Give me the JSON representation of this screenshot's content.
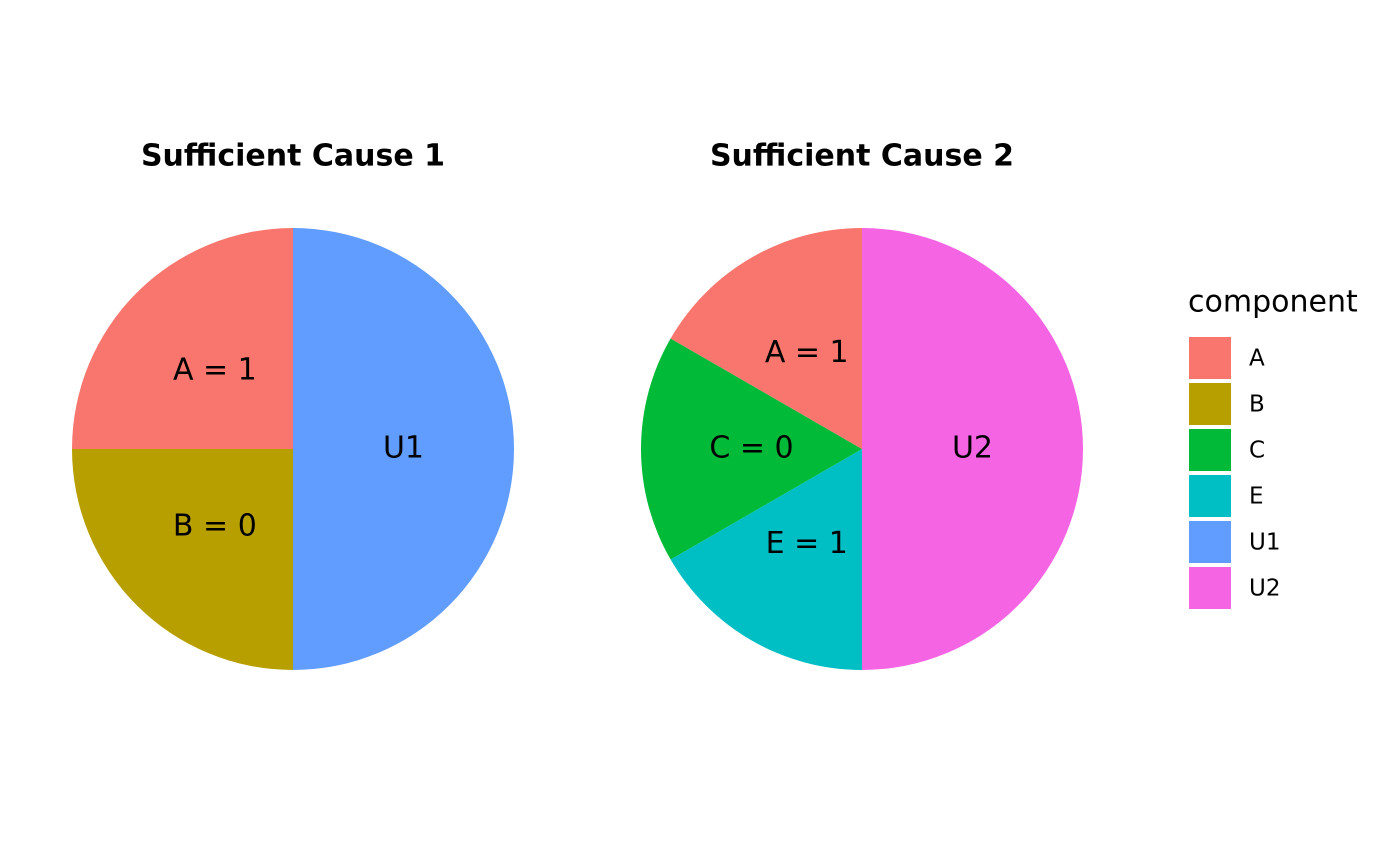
{
  "chart_data": [
    {
      "type": "pie",
      "title": "Sufficient Cause 1",
      "categories": [
        "U1",
        "B",
        "A"
      ],
      "values": [
        2,
        1,
        1
      ],
      "labels": [
        "U1",
        "B = 0",
        "A = 1"
      ],
      "colors": [
        "#619CFF",
        "#B79F00",
        "#F8766D"
      ]
    },
    {
      "type": "pie",
      "title": "Sufficient Cause 2",
      "categories": [
        "U2",
        "E",
        "C",
        "A"
      ],
      "values": [
        3,
        1,
        1,
        1
      ],
      "labels": [
        "U2",
        "E = 1",
        "C = 0",
        "A = 1"
      ],
      "colors": [
        "#F564E3",
        "#00BFC4",
        "#00BA38",
        "#F8766D"
      ]
    }
  ],
  "legend": {
    "title": "component",
    "position": "right",
    "items": [
      {
        "name": "A",
        "color": "#F8766D"
      },
      {
        "name": "B",
        "color": "#B79F00"
      },
      {
        "name": "C",
        "color": "#00BA38"
      },
      {
        "name": "E",
        "color": "#00BFC4"
      },
      {
        "name": "U1",
        "color": "#619CFF"
      },
      {
        "name": "U2",
        "color": "#F564E3"
      }
    ]
  }
}
